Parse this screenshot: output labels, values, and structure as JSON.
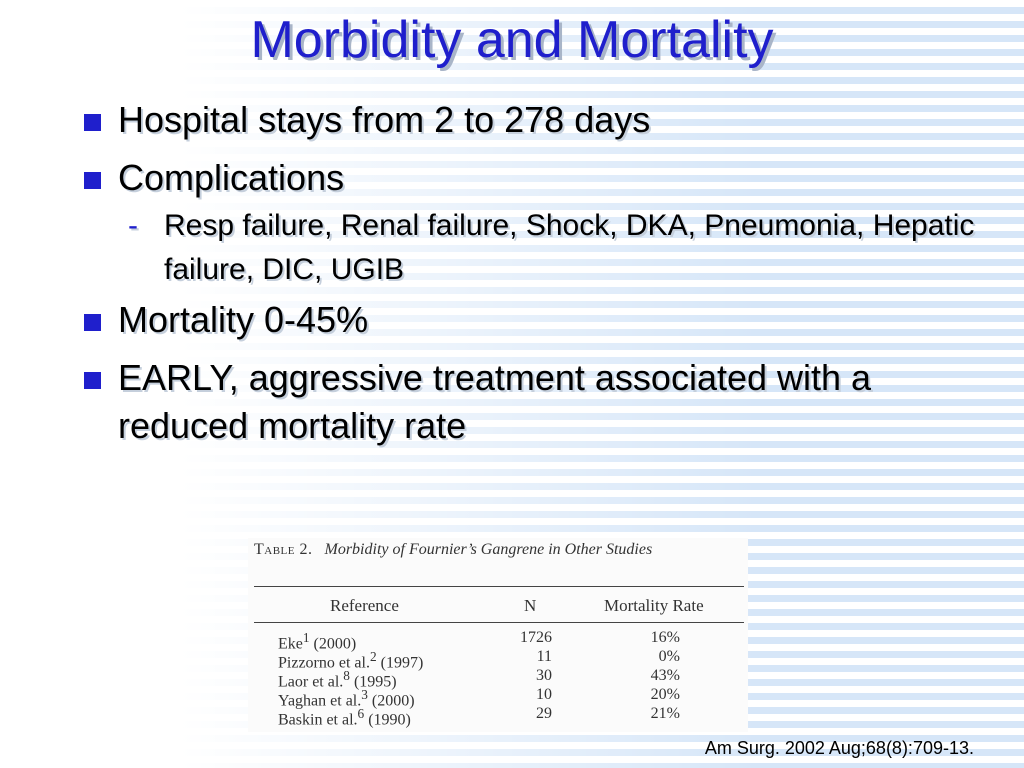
{
  "slide": {
    "title": "Morbidity and Mortality",
    "bullets": [
      {
        "text": "Hospital stays from 2 to 278 days",
        "sub": []
      },
      {
        "text": "Complications",
        "sub": [
          "Resp failure, Renal failure, Shock, DKA, Pneumonia, Hepatic failure, DIC, UGIB"
        ]
      },
      {
        "text": "Mortality 0-45%",
        "sub": []
      },
      {
        "text": "EARLY, aggressive treatment associated with a reduced mortality rate",
        "sub": []
      }
    ],
    "sub_marker": "-"
  },
  "table": {
    "caption_label": "Table 2.",
    "caption_title": "Morbidity of Fournier’s Gangrene in Other Studies",
    "headers": {
      "reference": "Reference",
      "n": "N",
      "rate": "Mortality Rate"
    },
    "rows": [
      {
        "ref": "Eke",
        "sup": "1",
        "year": "(2000)",
        "n": "1726",
        "rate": "16%"
      },
      {
        "ref": "Pizzorno et al.",
        "sup": "2",
        "year": "(1997)",
        "n": "11",
        "rate": "0%"
      },
      {
        "ref": "Laor et al.",
        "sup": "8",
        "year": "(1995)",
        "n": "30",
        "rate": "43%"
      },
      {
        "ref": "Yaghan et al.",
        "sup": "3",
        "year": "(2000)",
        "n": "10",
        "rate": "20%"
      },
      {
        "ref": "Baskin et al.",
        "sup": "6",
        "year": "(1990)",
        "n": "29",
        "rate": "21%"
      }
    ]
  },
  "citation": "Am Surg. 2002 Aug;68(8):709-13.",
  "colors": {
    "title": "#1f1fcc",
    "bullet": "#1f1fcc",
    "stripe": "#d6e6f8"
  }
}
